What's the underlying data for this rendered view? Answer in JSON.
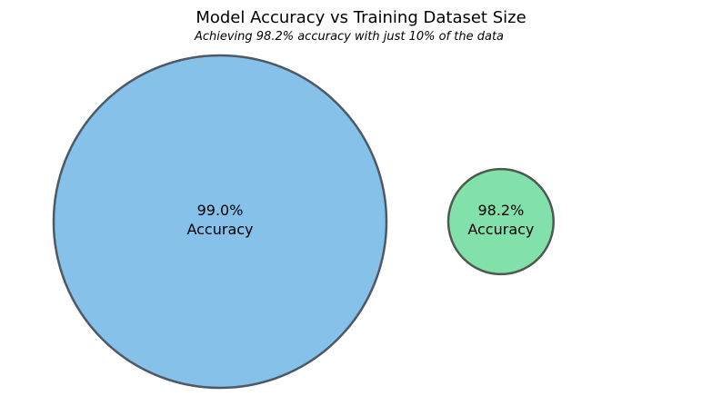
{
  "chart_data": {
    "type": "bubble",
    "title": "Model Accuracy vs Training Dataset Size",
    "subtitle": "Achieving 98.2% accuracy with just 10% of the data",
    "legend": "none",
    "grid": false,
    "axes_visible": false,
    "series": [
      {
        "dataset_fraction": 1.0,
        "accuracy": 99.0,
        "accuracy_label": "99.0%",
        "metric_label": "Accuracy",
        "fill_color": "#85C1E9",
        "edge_color": "#4D5A66"
      },
      {
        "dataset_fraction": 0.1,
        "accuracy": 98.2,
        "accuracy_label": "98.2%",
        "metric_label": "Accuracy",
        "fill_color": "#82E0AA",
        "edge_color": "#4D5A4F"
      }
    ]
  }
}
